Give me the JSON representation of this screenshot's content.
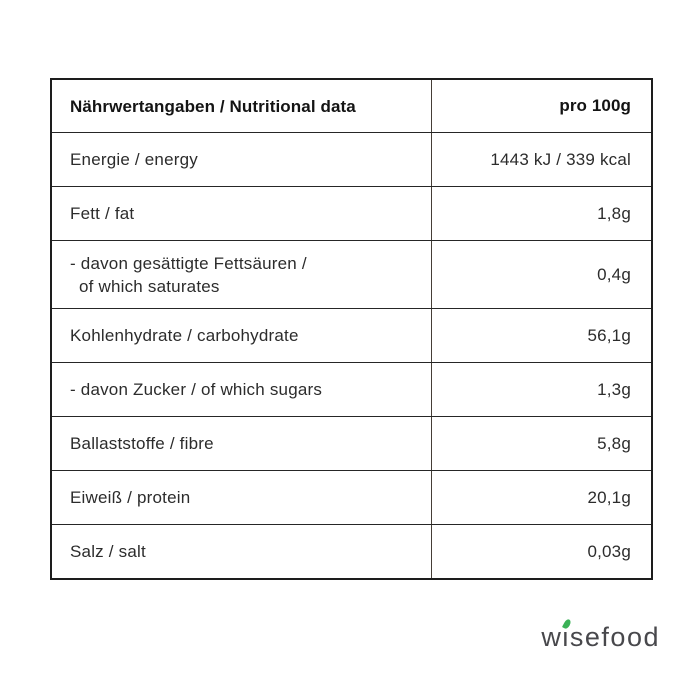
{
  "table": {
    "header": {
      "label": "Nährwertangaben / Nutritional data",
      "value": "pro 100g"
    },
    "rows": [
      {
        "label": "Energie / energy",
        "value": "1443 kJ / 339 kcal"
      },
      {
        "label": "Fett / fat",
        "value": "1,8g"
      },
      {
        "label": "- davon gesättigte Fettsäuren /",
        "label_line2": "of which saturates",
        "value": "0,4g"
      },
      {
        "label": "Kohlenhydrate / carbohydrate",
        "value": "56,1g"
      },
      {
        "label": "- davon Zucker / of which sugars",
        "value": "1,3g"
      },
      {
        "label": "Ballaststoffe / fibre",
        "value": "5,8g"
      },
      {
        "label": "Eiweiß / protein",
        "value": "20,1g"
      },
      {
        "label": "Salz / salt",
        "value": "0,03g"
      }
    ]
  },
  "brand": {
    "logo_text": "wisefood",
    "leaf_color": "#3bb257",
    "logo_text_color": "#48484c"
  },
  "colors": {
    "border": "#1d1d1d",
    "text": "#2c2c2c",
    "background": "#ffffff"
  }
}
